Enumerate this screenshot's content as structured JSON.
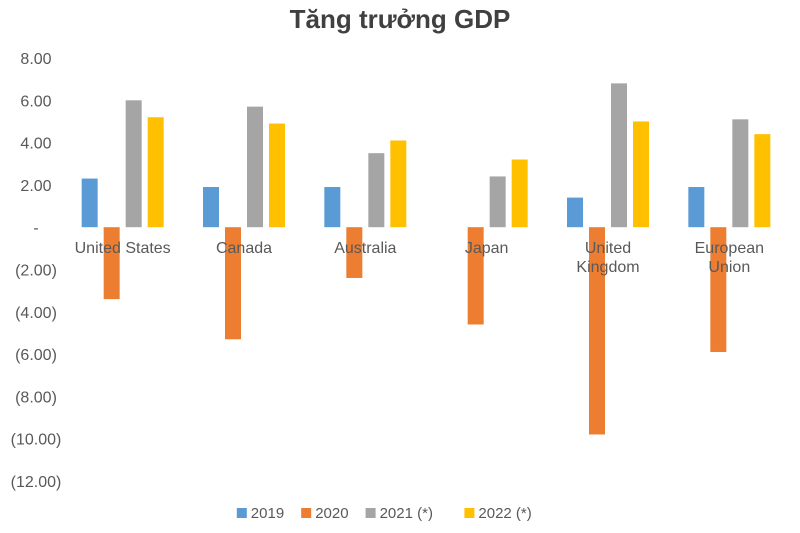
{
  "chart_data": {
    "type": "bar",
    "title": "Tăng trưởng GDP",
    "categories": [
      [
        "United States"
      ],
      [
        "Canada"
      ],
      [
        "Australia"
      ],
      [
        "Japan"
      ],
      [
        "United",
        "Kingdom"
      ],
      [
        "European",
        "Union"
      ]
    ],
    "series": [
      {
        "name": "2019",
        "color": "#5B9BD5",
        "values": [
          2.3,
          1.9,
          1.9,
          0.0,
          1.4,
          1.9
        ]
      },
      {
        "name": "2020",
        "color": "#ED7D31",
        "values": [
          -3.4,
          -5.3,
          -2.4,
          -4.6,
          -9.8,
          -5.9
        ]
      },
      {
        "name": "2021 (*)",
        "color": "#A5A5A5",
        "values": [
          6.0,
          5.7,
          3.5,
          2.4,
          6.8,
          5.1
        ]
      },
      {
        "name": "2022 (*)",
        "color": "#FFC000",
        "values": [
          5.2,
          4.9,
          4.1,
          3.2,
          5.0,
          4.4
        ]
      }
    ],
    "ylim": [
      -12,
      8
    ],
    "yticks": [
      8,
      6,
      4,
      2,
      0,
      -2,
      -4,
      -6,
      -8,
      -10,
      -12
    ],
    "ytick_labels": [
      "8.00",
      "6.00",
      "4.00",
      "2.00",
      "-",
      "(2.00)",
      "(4.00)",
      "(6.00)",
      "(8.00)",
      "(10.00)",
      "(12.00)"
    ],
    "grid": false,
    "legend": "bottom"
  }
}
